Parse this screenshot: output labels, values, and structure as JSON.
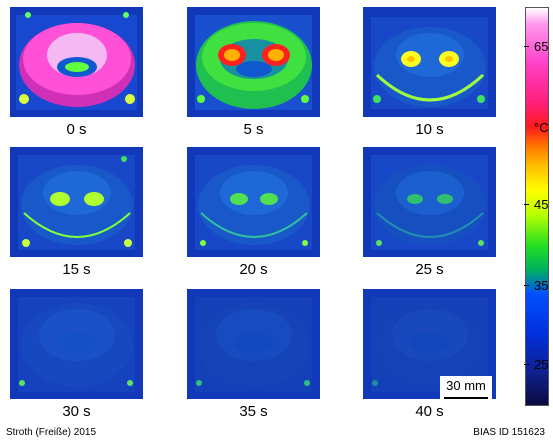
{
  "frames": [
    {
      "label": "0 s"
    },
    {
      "label": "5 s"
    },
    {
      "label": "10 s"
    },
    {
      "label": "15 s"
    },
    {
      "label": "20 s"
    },
    {
      "label": "25 s"
    },
    {
      "label": "30 s"
    },
    {
      "label": "35 s"
    },
    {
      "label": "40 s"
    }
  ],
  "scale_bar": {
    "label": "30 mm"
  },
  "color_scale": {
    "unit": "°C",
    "ticks": [
      "65",
      "45",
      "35",
      "25"
    ]
  },
  "footer": {
    "credit": "Stroth (Freiße) 2015",
    "id": "BIAS ID 151623"
  }
}
